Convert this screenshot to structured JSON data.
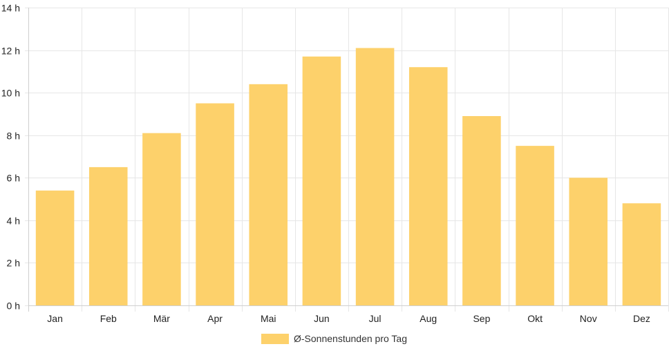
{
  "chart_data": {
    "type": "bar",
    "categories": [
      "Jan",
      "Feb",
      "Mär",
      "Apr",
      "Mai",
      "Jun",
      "Jul",
      "Aug",
      "Sep",
      "Okt",
      "Nov",
      "Dez"
    ],
    "series": [
      {
        "name": "Ø-Sonnenstunden pro Tag",
        "values": [
          5.4,
          6.5,
          8.1,
          9.5,
          10.4,
          11.7,
          12.1,
          11.2,
          8.9,
          7.5,
          6.0,
          4.8
        ],
        "color": "#fdd16b"
      }
    ],
    "ylim": [
      0,
      14
    ],
    "y_ticks": [
      0,
      2,
      4,
      6,
      8,
      10,
      12,
      14
    ],
    "y_tick_labels": [
      "0 h",
      "2 h",
      "4 h",
      "6 h",
      "8 h",
      "10 h",
      "12 h",
      "14 h"
    ],
    "grid": true,
    "legend_position": "bottom",
    "title": "",
    "xlabel": "",
    "ylabel": ""
  },
  "colors": {
    "bar": "#fdd16b",
    "grid": "#e6e6e6",
    "axis": "#cfcfcf"
  }
}
